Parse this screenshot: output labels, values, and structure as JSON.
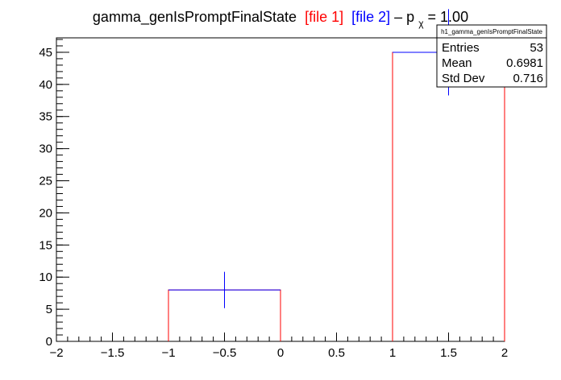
{
  "chart_data": {
    "type": "histogram",
    "title": {
      "main": "gamma_genIsPromptFinalState",
      "file1": "[file 1]",
      "file2": "[file 2]",
      "suffix_dash": " – p",
      "suffix_sub": "χ",
      "suffix_value": " = 1.00",
      "file1_color": "#ff0000",
      "file2_color": "#0000ff"
    },
    "xlim": [
      -2,
      2
    ],
    "ylim": [
      0,
      47.25
    ],
    "x_ticks": [
      -2,
      -1.5,
      -1,
      -0.5,
      0,
      0.5,
      1,
      1.5,
      2
    ],
    "x_tick_labels": [
      "−2",
      "−1.5",
      "−1",
      "−0.5",
      "0",
      "0.5",
      "1",
      "1.5",
      "2"
    ],
    "y_ticks": [
      0,
      5,
      10,
      15,
      20,
      25,
      30,
      35,
      40,
      45
    ],
    "y_tick_labels": [
      "0",
      "5",
      "10",
      "15",
      "20",
      "25",
      "30",
      "35",
      "40",
      "45"
    ],
    "series": [
      {
        "style": "step",
        "color": "#ff0000",
        "bins": [
          {
            "x_low": -1,
            "x_high": 0,
            "value": 8
          },
          {
            "x_low": 1,
            "x_high": 2,
            "value": 45
          }
        ]
      },
      {
        "style": "errorbar",
        "color": "#0000ff",
        "bins": [
          {
            "x_low": -1,
            "x_high": 0,
            "x_center": -0.5,
            "value": 8,
            "error": 2.83
          },
          {
            "x_low": 1,
            "x_high": 2,
            "x_center": 1.5,
            "value": 45,
            "error": 6.71
          }
        ]
      }
    ],
    "stats_box": {
      "name": "h1_gamma_genIsPromptFinalState",
      "rows": [
        {
          "label": "Entries",
          "value": "53"
        },
        {
          "label": "Mean",
          "value": "0.6981"
        },
        {
          "label": "Std Dev",
          "value": "0.716"
        }
      ]
    }
  }
}
